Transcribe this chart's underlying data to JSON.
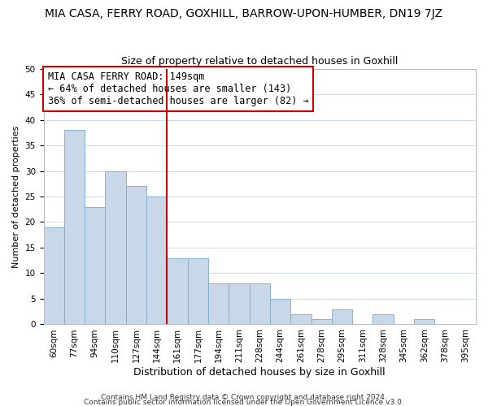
{
  "title": "MIA CASA, FERRY ROAD, GOXHILL, BARROW-UPON-HUMBER, DN19 7JZ",
  "subtitle": "Size of property relative to detached houses in Goxhill",
  "xlabel": "Distribution of detached houses by size in Goxhill",
  "ylabel": "Number of detached properties",
  "bin_labels": [
    "60sqm",
    "77sqm",
    "94sqm",
    "110sqm",
    "127sqm",
    "144sqm",
    "161sqm",
    "177sqm",
    "194sqm",
    "211sqm",
    "228sqm",
    "244sqm",
    "261sqm",
    "278sqm",
    "295sqm",
    "311sqm",
    "328sqm",
    "345sqm",
    "362sqm",
    "378sqm",
    "395sqm"
  ],
  "bar_values": [
    19,
    38,
    23,
    30,
    27,
    25,
    13,
    13,
    8,
    8,
    8,
    5,
    2,
    1,
    3,
    0,
    2,
    0,
    1,
    0,
    0
  ],
  "bar_color": "#c8d8e8",
  "bar_edge_color": "#7aaac8",
  "vline_color": "#cc0000",
  "vline_index": 6,
  "ylim": [
    0,
    50
  ],
  "annotation_title": "MIA CASA FERRY ROAD: 149sqm",
  "annotation_line1": "← 64% of detached houses are smaller (143)",
  "annotation_line2": "36% of semi-detached houses are larger (82) →",
  "annotation_box_color": "#ffffff",
  "annotation_box_edge": "#cc0000",
  "footnote1": "Contains HM Land Registry data © Crown copyright and database right 2024.",
  "footnote2": "Contains public sector information licensed under the Open Government Licence v3.0.",
  "title_fontsize": 10,
  "subtitle_fontsize": 9,
  "xlabel_fontsize": 9,
  "ylabel_fontsize": 8,
  "tick_fontsize": 7.5,
  "annotation_fontsize": 8.5,
  "footnote_fontsize": 6.5,
  "grid_color": "#d0dce8"
}
